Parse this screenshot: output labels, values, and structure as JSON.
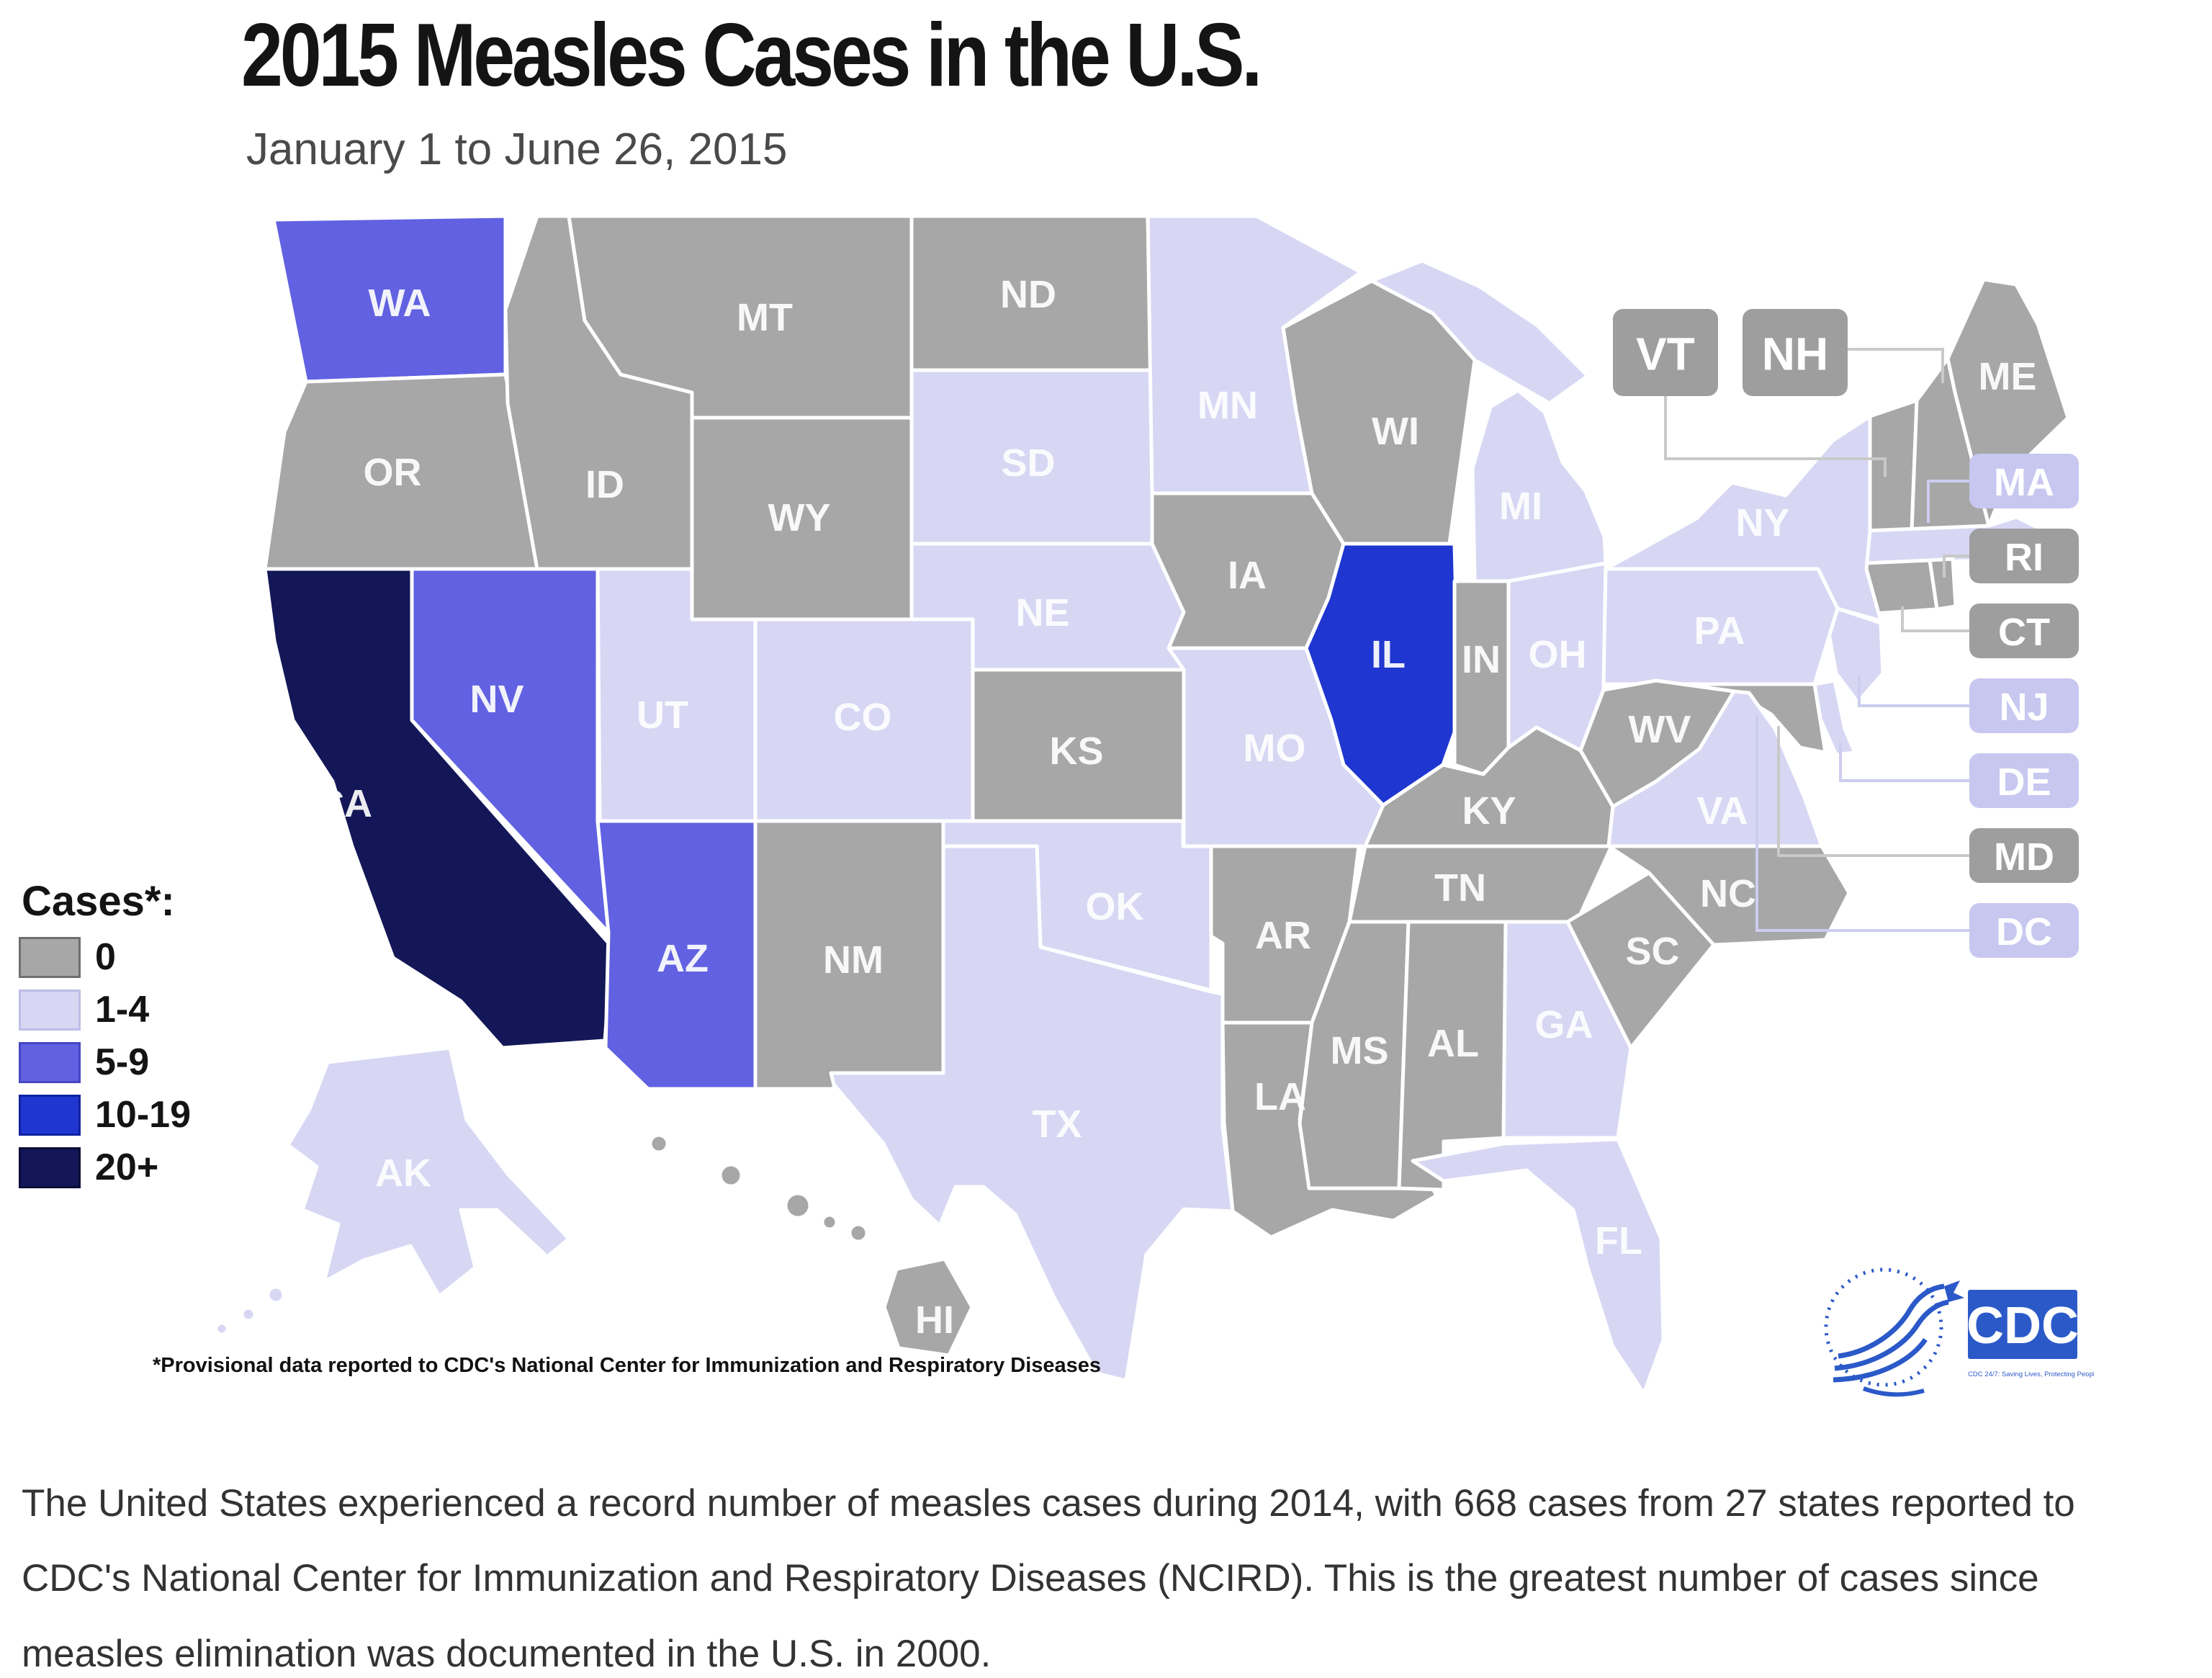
{
  "title": "2015 Measles Cases in the U.S.",
  "subtitle": "January 1 to June 26, 2015",
  "legend": {
    "label": "Cases*:",
    "classes": [
      {
        "label": "0",
        "color": "#a7a7a7",
        "border": "#6f6f6f"
      },
      {
        "label": "1-4",
        "color": "#d7d7f4",
        "border": "#bdbde6"
      },
      {
        "label": "5-9",
        "color": "#6161e2",
        "border": "#4646c4"
      },
      {
        "label": "10-19",
        "color": "#1f36d0",
        "border": "#1023a0"
      },
      {
        "label": "20+",
        "color": "#131757",
        "border": "#0a0d38"
      }
    ]
  },
  "map": {
    "states": [
      {
        "id": "WA",
        "label": "WA",
        "cases": "5-9"
      },
      {
        "id": "OR",
        "label": "OR",
        "cases": "0"
      },
      {
        "id": "CA",
        "label": "CA",
        "cases": "20+"
      },
      {
        "id": "NV",
        "label": "NV",
        "cases": "5-9"
      },
      {
        "id": "ID",
        "label": "ID",
        "cases": "0"
      },
      {
        "id": "MT",
        "label": "MT",
        "cases": "0"
      },
      {
        "id": "WY",
        "label": "WY",
        "cases": "0"
      },
      {
        "id": "UT",
        "label": "UT",
        "cases": "1-4"
      },
      {
        "id": "AZ",
        "label": "AZ",
        "cases": "5-9"
      },
      {
        "id": "CO",
        "label": "CO",
        "cases": "1-4"
      },
      {
        "id": "NM",
        "label": "NM",
        "cases": "0"
      },
      {
        "id": "ND",
        "label": "ND",
        "cases": "0"
      },
      {
        "id": "SD",
        "label": "SD",
        "cases": "1-4"
      },
      {
        "id": "NE",
        "label": "NE",
        "cases": "1-4"
      },
      {
        "id": "KS",
        "label": "KS",
        "cases": "0"
      },
      {
        "id": "OK",
        "label": "OK",
        "cases": "1-4"
      },
      {
        "id": "TX",
        "label": "TX",
        "cases": "1-4"
      },
      {
        "id": "MN",
        "label": "MN",
        "cases": "1-4"
      },
      {
        "id": "IA",
        "label": "IA",
        "cases": "0"
      },
      {
        "id": "MO",
        "label": "MO",
        "cases": "1-4"
      },
      {
        "id": "AR",
        "label": "AR",
        "cases": "0"
      },
      {
        "id": "LA",
        "label": "LA",
        "cases": "0"
      },
      {
        "id": "WI",
        "label": "WI",
        "cases": "0"
      },
      {
        "id": "IL",
        "label": "IL",
        "cases": "10-19"
      },
      {
        "id": "MI",
        "label": "MI",
        "cases": "1-4"
      },
      {
        "id": "IN",
        "label": "IN",
        "cases": "0"
      },
      {
        "id": "OH",
        "label": "OH",
        "cases": "1-4"
      },
      {
        "id": "KY",
        "label": "KY",
        "cases": "0"
      },
      {
        "id": "TN",
        "label": "TN",
        "cases": "0"
      },
      {
        "id": "MS",
        "label": "MS",
        "cases": "0"
      },
      {
        "id": "AL",
        "label": "AL",
        "cases": "0"
      },
      {
        "id": "GA",
        "label": "GA",
        "cases": "1-4"
      },
      {
        "id": "FL",
        "label": "FL",
        "cases": "1-4"
      },
      {
        "id": "ME",
        "label": "ME",
        "cases": "0"
      },
      {
        "id": "VT",
        "label": "VT",
        "cases": "0"
      },
      {
        "id": "NH",
        "label": "NH",
        "cases": "0"
      },
      {
        "id": "MA",
        "label": "MA",
        "cases": "1-4"
      },
      {
        "id": "RI",
        "label": "RI",
        "cases": "0"
      },
      {
        "id": "CT",
        "label": "CT",
        "cases": "0"
      },
      {
        "id": "NJ",
        "label": "NJ",
        "cases": "1-4"
      },
      {
        "id": "DE",
        "label": "DE",
        "cases": "1-4"
      },
      {
        "id": "MD",
        "label": "MD",
        "cases": "0"
      },
      {
        "id": "DC",
        "label": "DC",
        "cases": "1-4"
      },
      {
        "id": "PA",
        "label": "PA",
        "cases": "1-4"
      },
      {
        "id": "NY",
        "label": "NY",
        "cases": "1-4"
      },
      {
        "id": "WV",
        "label": "WV",
        "cases": "0"
      },
      {
        "id": "VA",
        "label": "VA",
        "cases": "1-4"
      },
      {
        "id": "NC",
        "label": "NC",
        "cases": "0"
      },
      {
        "id": "SC",
        "label": "SC",
        "cases": "0"
      },
      {
        "id": "AK",
        "label": "AK",
        "cases": "1-4"
      },
      {
        "id": "HI",
        "label": "HI",
        "cases": "0"
      }
    ]
  },
  "footnote": "*Provisional data reported to CDC's National Center for Immunization and Respiratory Diseases",
  "body_text": "The United States experienced a record number of measles cases during 2014, with 668 cases from 27 states reported to CDC's National Center for Immunization and Respiratory Diseases (NCIRD). This is the greatest number of cases since measles elimination was documented in the U.S. in 2000.",
  "logo": {
    "cdc_text": "CDC",
    "tagline": "CDC 24/7: Saving Lives, Protecting People™",
    "brand_blue": "#2b59c8"
  }
}
